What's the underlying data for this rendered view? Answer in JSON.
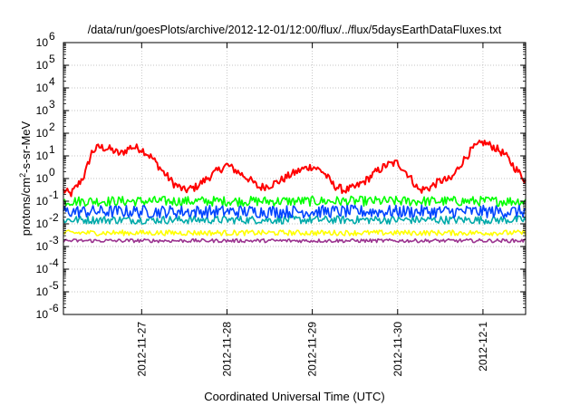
{
  "chart_data": {
    "type": "line",
    "title": "/data/run/goesPlots/archive/2012-12-01/12:00/flux/../flux/5daysEarthDataFluxes.txt",
    "xlabel": "Coordinated Universal Time (UTC)",
    "ylabel_parts": [
      "protons/cm",
      "2",
      "-s-sr-MeV"
    ],
    "xscale": "time",
    "xlim": [
      "2012-11-26T02:00",
      "2012-12-01T12:00"
    ],
    "x_ticks": [
      {
        "value": "2012-11-27T00:00",
        "label": "2012-11-27"
      },
      {
        "value": "2012-11-28T00:00",
        "label": "2012-11-28"
      },
      {
        "value": "2012-11-29T00:00",
        "label": "2012-11-29"
      },
      {
        "value": "2012-11-30T00:00",
        "label": "2012-11-30"
      },
      {
        "value": "2012-12-01T00:00",
        "label": "2012-12-1"
      }
    ],
    "yscale": "log",
    "ylim": [
      1e-06,
      1000000.0
    ],
    "y_ticks": [
      {
        "value": 1e-06,
        "base": "10",
        "exp": "-6"
      },
      {
        "value": 1e-05,
        "base": "10",
        "exp": "-5"
      },
      {
        "value": 0.0001,
        "base": "10",
        "exp": "-4"
      },
      {
        "value": 0.001,
        "base": "10",
        "exp": "-3"
      },
      {
        "value": 0.01,
        "base": "10",
        "exp": "-2"
      },
      {
        "value": 0.1,
        "base": "10",
        "exp": "-1"
      },
      {
        "value": 1,
        "base": "10",
        "exp": "0"
      },
      {
        "value": 10,
        "base": "10",
        "exp": "1"
      },
      {
        "value": 100,
        "base": "10",
        "exp": "2"
      },
      {
        "value": 1000,
        "base": "10",
        "exp": "3"
      },
      {
        "value": 10000,
        "base": "10",
        "exp": "4"
      },
      {
        "value": 100000,
        "base": "10",
        "exp": "5"
      },
      {
        "value": 1000000,
        "base": "10",
        "exp": "6"
      }
    ],
    "grid": true,
    "legend": "none",
    "series": [
      {
        "color": "#ff0000",
        "x": [
          "2012-11-26T02:00",
          "2012-11-26T04:00",
          "2012-11-26T06:00",
          "2012-11-26T08:00",
          "2012-11-26T10:00",
          "2012-11-26T12:00",
          "2012-11-26T15:00",
          "2012-11-26T18:00",
          "2012-11-26T21:00",
          "2012-11-27T00:00",
          "2012-11-27T03:00",
          "2012-11-27T06:00",
          "2012-11-27T09:00",
          "2012-11-27T12:00",
          "2012-11-27T15:00",
          "2012-11-27T18:00",
          "2012-11-27T21:00",
          "2012-11-28T00:00",
          "2012-11-28T03:00",
          "2012-11-28T06:00",
          "2012-11-28T09:00",
          "2012-11-28T12:00",
          "2012-11-28T15:00",
          "2012-11-28T18:00",
          "2012-11-28T21:00",
          "2012-11-29T00:00",
          "2012-11-29T03:00",
          "2012-11-29T06:00",
          "2012-11-29T09:00",
          "2012-11-29T12:00",
          "2012-11-29T15:00",
          "2012-11-29T18:00",
          "2012-11-29T21:00",
          "2012-11-30T00:00",
          "2012-11-30T03:00",
          "2012-11-30T06:00",
          "2012-11-30T09:00",
          "2012-11-30T12:00",
          "2012-11-30T15:00",
          "2012-11-30T18:00",
          "2012-11-30T21:00",
          "2012-12-01T00:00",
          "2012-12-01T03:00",
          "2012-12-01T06:00",
          "2012-12-01T09:00",
          "2012-12-01T12:00"
        ],
        "y": [
          0.3,
          0.2,
          0.5,
          1.5,
          15,
          25,
          20,
          12,
          25,
          20,
          8,
          2,
          0.6,
          0.3,
          0.4,
          0.9,
          2,
          4,
          2,
          1,
          0.4,
          0.5,
          0.8,
          1.5,
          2.5,
          3.5,
          2,
          0.5,
          0.3,
          0.4,
          0.8,
          2,
          4,
          5,
          1.5,
          0.3,
          0.4,
          0.8,
          0.9,
          5,
          20,
          40,
          25,
          12,
          3,
          0.8
        ]
      },
      {
        "color": "#00ff00",
        "x": [
          "2012-11-26T02:00",
          "2012-12-01T12:00"
        ],
        "y": [
          0.1,
          0.1
        ]
      },
      {
        "color": "#00aaaa",
        "x": [
          "2012-11-26T02:00",
          "2012-12-01T12:00"
        ],
        "y": [
          0.015,
          0.015
        ]
      },
      {
        "color": "#0044ff",
        "x": [
          "2012-11-26T02:00",
          "2012-12-01T12:00"
        ],
        "y": [
          0.035,
          0.035
        ]
      },
      {
        "color": "#ffff00",
        "x": [
          "2012-11-26T02:00",
          "2012-12-01T12:00"
        ],
        "y": [
          0.004,
          0.004
        ]
      },
      {
        "color": "#9b3490",
        "x": [
          "2012-11-26T02:00",
          "2012-12-01T12:00"
        ],
        "y": [
          0.0018,
          0.0018
        ]
      }
    ]
  }
}
